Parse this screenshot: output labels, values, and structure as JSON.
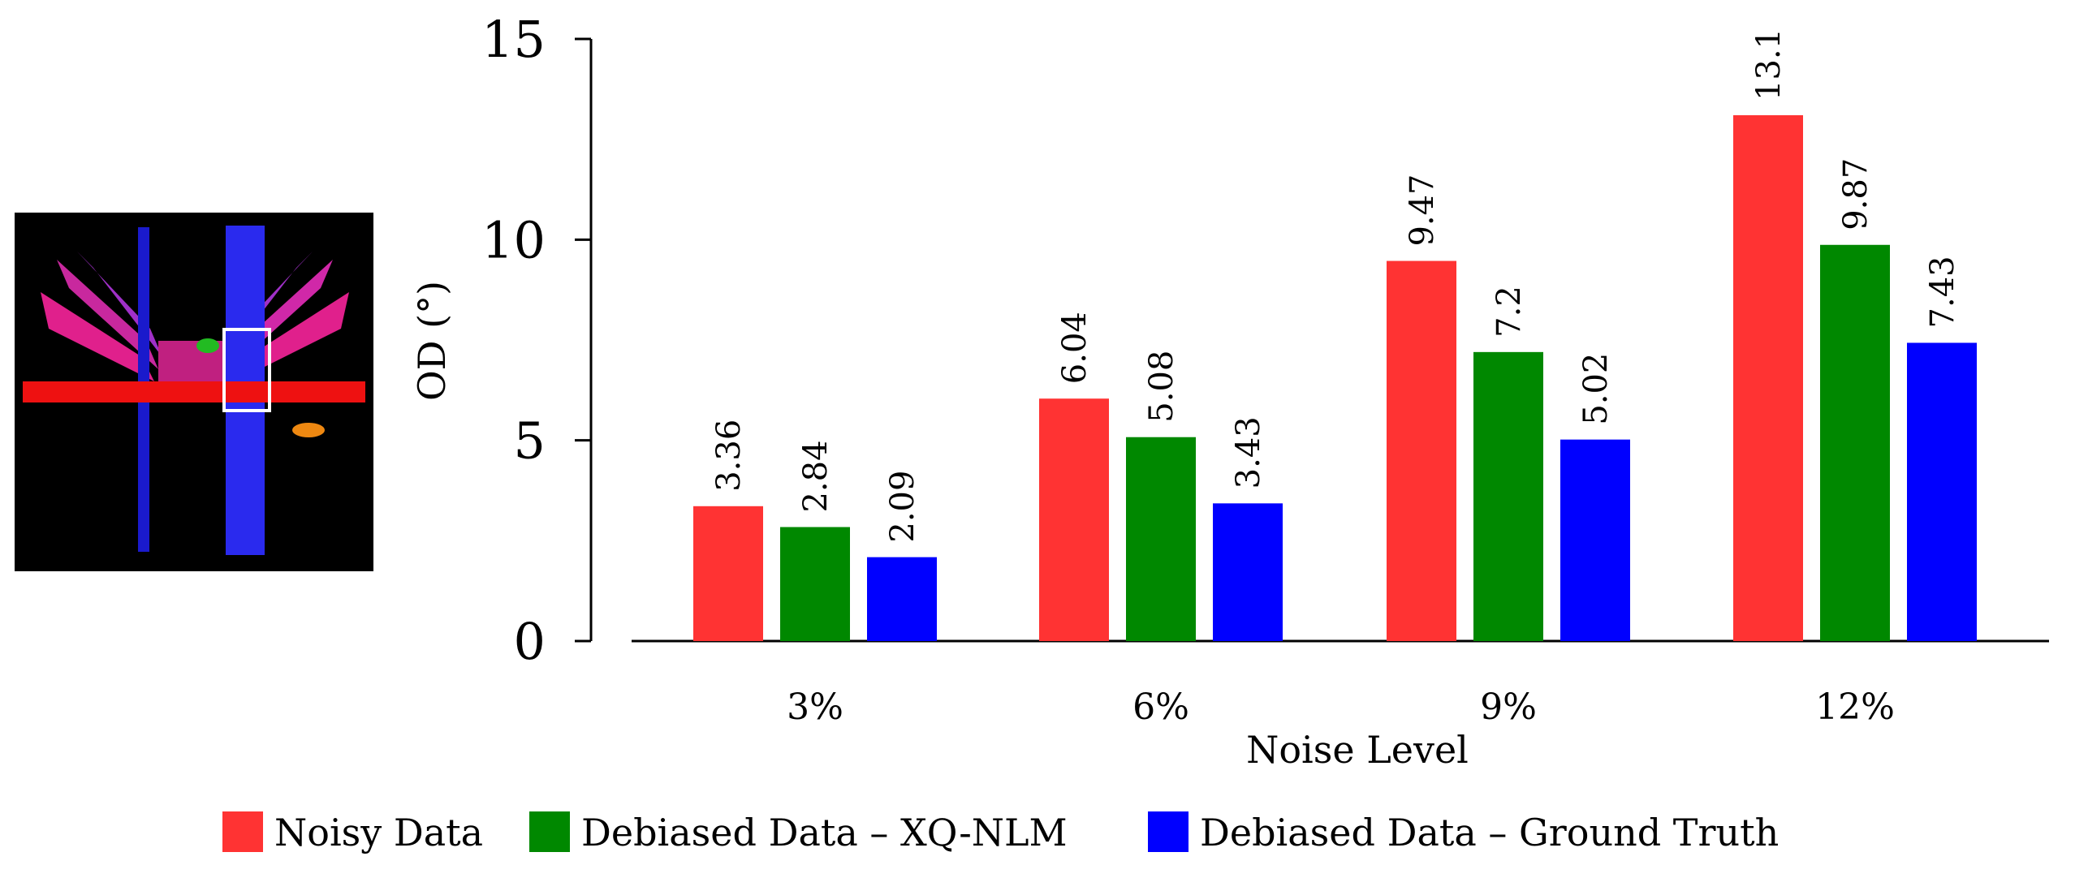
{
  "chart_data": {
    "type": "bar",
    "categories": [
      "3%",
      "6%",
      "9%",
      "12%"
    ],
    "series": [
      {
        "name": "Noisy Data",
        "color": "#ff3333",
        "values": [
          3.36,
          6.04,
          9.47,
          13.1
        ],
        "labels": [
          "3.36",
          "6.04",
          "9.47",
          "13.1"
        ]
      },
      {
        "name": "Debiased Data – XQ-NLM",
        "color": "#008800",
        "values": [
          2.84,
          5.08,
          7.2,
          9.87
        ],
        "labels": [
          "2.84",
          "5.08",
          "7.2",
          "9.87"
        ]
      },
      {
        "name": "Debiased Data – Ground Truth",
        "color": "#0000ff",
        "values": [
          2.09,
          3.43,
          5.02,
          7.43
        ],
        "labels": [
          "2.09",
          "3.43",
          "5.02",
          "7.43"
        ]
      }
    ],
    "title": "",
    "xlabel": "Noise Level",
    "ylabel": "OD (°)",
    "ylim": [
      0,
      15
    ],
    "yticks": [
      "0",
      "5",
      "10",
      "15"
    ],
    "legend_position": "bottom",
    "grid": false
  },
  "inset": {
    "description_icon": "brain-phantom-inset-icon"
  }
}
